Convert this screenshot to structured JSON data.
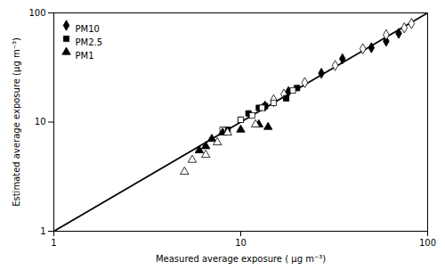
{
  "chart_data": {
    "type": "scatter",
    "xlabel": "Measured average exposure ( μg m⁻³)",
    "ylabel": "Estimated average exposure (μg m⁻³)",
    "xlim": [
      1,
      100
    ],
    "ylim": [
      1,
      100
    ],
    "xticks": [
      1,
      10,
      100
    ],
    "yticks": [
      1,
      10,
      100
    ],
    "log": true,
    "grid": false,
    "legend": "upper left",
    "series": [
      {
        "type": "line",
        "color": "#000000",
        "line_style": "solid",
        "x": [
          1,
          100
        ],
        "values": [
          1,
          100
        ]
      },
      {
        "name": "PM10",
        "type": "scatter",
        "marker": "diamond",
        "color": "#000000",
        "x": [
          13.5,
          15.0,
          18.0,
          27.0,
          35.0,
          50.0,
          60.0,
          70.0
        ],
        "values": [
          14.0,
          15.5,
          19.0,
          28.0,
          38.0,
          48.0,
          55.0,
          65.0
        ]
      },
      {
        "name": "PM10",
        "type": "scatter",
        "marker": "diamond",
        "color": "#ffffff",
        "x": [
          15.0,
          17.0,
          22.0,
          32.0,
          45.0,
          60.0,
          75.0,
          82.0
        ],
        "values": [
          16.0,
          18.0,
          23.0,
          33.0,
          47.0,
          63.0,
          73.0,
          80.0
        ]
      },
      {
        "name": "PM2.5",
        "type": "scatter",
        "marker": "square",
        "color": "#000000",
        "x": [
          8.5,
          10.0,
          11.0,
          12.5,
          13.5,
          17.5,
          20.0
        ],
        "values": [
          8.5,
          10.5,
          12.0,
          13.5,
          14.0,
          16.5,
          20.5
        ]
      },
      {
        "name": "PM2.5",
        "type": "scatter",
        "marker": "square",
        "color": "#ffffff",
        "x": [
          8.0,
          10.0,
          11.5,
          13.0,
          15.0,
          19.0
        ],
        "values": [
          8.5,
          10.5,
          11.5,
          13.5,
          15.0,
          19.5
        ]
      },
      {
        "name": "PM1",
        "type": "scatter",
        "marker": "triangle",
        "color": "#000000",
        "x": [
          6.0,
          6.5,
          7.0,
          8.0,
          10.0,
          12.5,
          14.0
        ],
        "values": [
          5.5,
          6.0,
          7.0,
          8.0,
          8.5,
          9.5,
          9.0
        ]
      },
      {
        "name": "PM1",
        "type": "scatter",
        "marker": "triangle",
        "color": "#ffffff",
        "x": [
          5.0,
          5.5,
          6.5,
          7.5,
          8.5,
          12.0
        ],
        "values": [
          3.5,
          4.5,
          5.0,
          6.5,
          8.0,
          9.5
        ]
      }
    ]
  }
}
